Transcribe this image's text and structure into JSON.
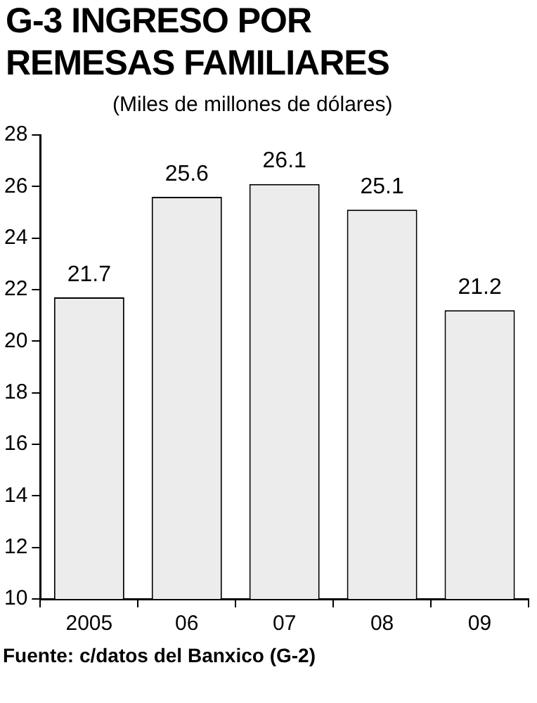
{
  "chart_data": {
    "type": "bar",
    "title": "G-3 INGRESO POR REMESAS FAMILIARES",
    "subtitle": "(Miles de millones de dólares)",
    "categories": [
      "2005",
      "06",
      "07",
      "08",
      "09"
    ],
    "values": [
      21.7,
      25.6,
      26.1,
      25.1,
      21.2
    ],
    "color": "#ececec",
    "ylim": [
      10,
      28
    ],
    "yticks": [
      10,
      12,
      14,
      16,
      18,
      20,
      22,
      24,
      26,
      28
    ],
    "data_labels": true,
    "annotations": [
      "Fuente: c/datos del Banxico (G-2)"
    ]
  }
}
